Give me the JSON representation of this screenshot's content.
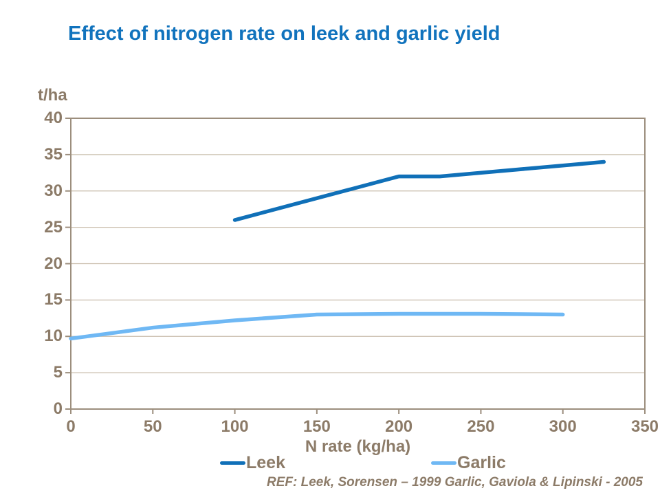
{
  "title": "Effect of nitrogen rate on leek and garlic yield",
  "footer": {
    "ref_text": "REF: Leek, Sorensen – 1999 Garlic, Gaviola & Lipinski - 2005"
  },
  "colors": {
    "background": "#FFFFFF",
    "title_text": "#1173BD",
    "axis_text": "#8C7B68",
    "axis_line": "#9C8E7D",
    "gridline": "#C9BDAC",
    "leek": "#1070B8",
    "garlic": "#6FB8F4"
  },
  "chart_data": {
    "type": "line",
    "title": "Effect of nitrogen rate on leek and garlic yield",
    "xlabel": "N rate (kg/ha)",
    "ylabel": "t/ha",
    "xlim": [
      0,
      350
    ],
    "ylim": [
      0,
      40
    ],
    "x_ticks": [
      0,
      50,
      100,
      150,
      200,
      250,
      300,
      350
    ],
    "y_ticks": [
      0,
      5,
      10,
      15,
      20,
      25,
      30,
      35,
      40
    ],
    "grid": "horizontal",
    "legend_position": "bottom",
    "series": [
      {
        "name": "Leek",
        "color": "#1070B8",
        "points": [
          [
            100,
            26
          ],
          [
            200,
            32
          ],
          [
            225,
            32
          ],
          [
            325,
            34
          ]
        ]
      },
      {
        "name": "Garlic",
        "color": "#6FB8F4",
        "points": [
          [
            0,
            9.7
          ],
          [
            50,
            11.2
          ],
          [
            100,
            12.2
          ],
          [
            150,
            13
          ],
          [
            200,
            13.1
          ],
          [
            250,
            13.1
          ],
          [
            300,
            13
          ]
        ]
      }
    ]
  }
}
